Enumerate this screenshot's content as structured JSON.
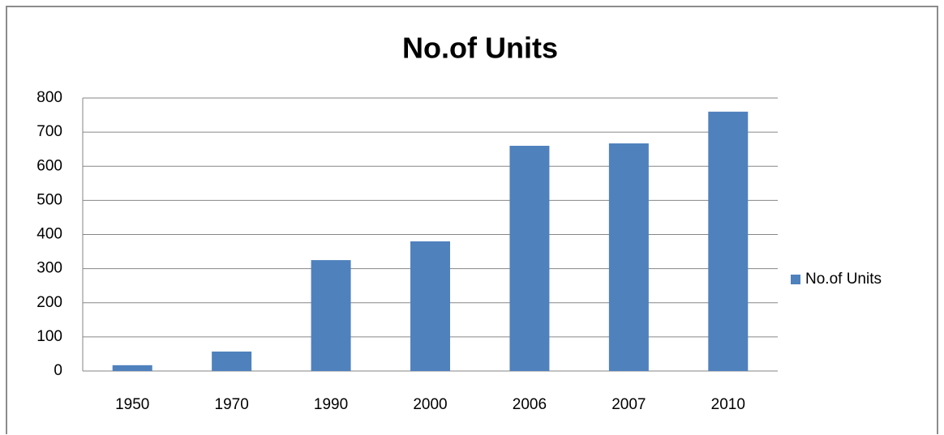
{
  "chart_data": {
    "type": "bar",
    "title": "No.of Units",
    "categories": [
      "1950",
      "1970",
      "1990",
      "2000",
      "2006",
      "2007",
      "2010"
    ],
    "series": [
      {
        "name": "No.of Units",
        "color": "#4f81bd",
        "values": [
          17,
          57,
          325,
          380,
          660,
          667,
          760
        ]
      }
    ],
    "ylim": [
      0,
      800
    ],
    "yticks": [
      0,
      100,
      200,
      300,
      400,
      500,
      600,
      700,
      800
    ],
    "grid": true,
    "legend": "right"
  }
}
